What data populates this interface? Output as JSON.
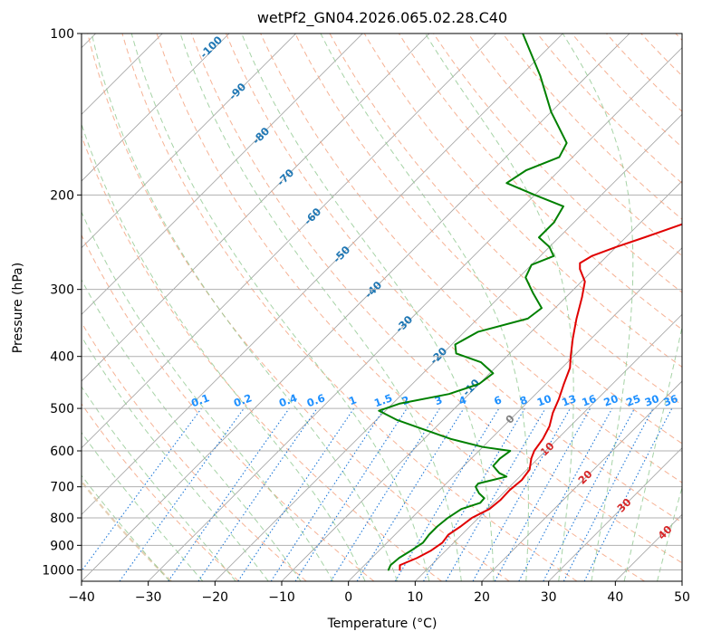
{
  "chart_data": {
    "type": "line",
    "title": "wetPf2_GN04.2026.065.02.28.C40",
    "xlabel": "Temperature (°C)",
    "ylabel": "Pressure (hPa)",
    "xlim": [
      -40,
      50
    ],
    "ylim": [
      1050,
      100
    ],
    "x_ticks": [
      "−40",
      "−30",
      "−20",
      "−10",
      "0",
      "10",
      "20",
      "30",
      "40",
      "50"
    ],
    "y_ticks": [
      {
        "p": 100,
        "label": "100"
      },
      {
        "p": 200,
        "label": "200"
      },
      {
        "p": 300,
        "label": "300"
      },
      {
        "p": 400,
        "label": "400"
      },
      {
        "p": 500,
        "label": "500"
      },
      {
        "p": 600,
        "label": "600"
      },
      {
        "p": 700,
        "label": "700"
      },
      {
        "p": 800,
        "label": "800"
      },
      {
        "p": 900,
        "label": "900"
      },
      {
        "p": 1000,
        "label": "1000"
      }
    ],
    "series": [
      {
        "name": "temperature",
        "color": "#e00000",
        "points": [
          [
            1000,
            6.0
          ],
          [
            980,
            5.3
          ],
          [
            950,
            6.8
          ],
          [
            920,
            7.8
          ],
          [
            890,
            8.3
          ],
          [
            860,
            8.0
          ],
          [
            830,
            8.6
          ],
          [
            800,
            9.0
          ],
          [
            770,
            10.3
          ],
          [
            740,
            10.6
          ],
          [
            710,
            10.5
          ],
          [
            680,
            10.8
          ],
          [
            650,
            10.4
          ],
          [
            620,
            9.0
          ],
          [
            600,
            8.3
          ],
          [
            570,
            7.8
          ],
          [
            540,
            6.9
          ],
          [
            510,
            5.4
          ],
          [
            480,
            4.2
          ],
          [
            450,
            2.7
          ],
          [
            420,
            1.2
          ],
          [
            400,
            -0.4
          ],
          [
            370,
            -2.8
          ],
          [
            340,
            -5.2
          ],
          [
            310,
            -7.6
          ],
          [
            290,
            -9.5
          ],
          [
            275,
            -12.1
          ],
          [
            268,
            -13.0
          ],
          [
            260,
            -12.3
          ],
          [
            250,
            -10.0
          ],
          [
            240,
            -7.2
          ],
          [
            225,
            -3.0
          ],
          [
            210,
            0.6
          ],
          [
            200,
            3.6
          ],
          [
            190,
            5.0
          ],
          [
            180,
            5.6
          ],
          [
            165,
            5.5
          ],
          [
            150,
            5.0
          ],
          [
            135,
            4.3
          ],
          [
            120,
            5.0
          ],
          [
            110,
            5.8
          ],
          [
            100,
            6.2
          ]
        ]
      },
      {
        "name": "dewpoint",
        "color": "#008000",
        "points": [
          [
            1000,
            4.3
          ],
          [
            980,
            3.9
          ],
          [
            950,
            4.1
          ],
          [
            920,
            4.8
          ],
          [
            890,
            5.4
          ],
          [
            860,
            5.1
          ],
          [
            830,
            5.1
          ],
          [
            800,
            5.4
          ],
          [
            770,
            6.1
          ],
          [
            750,
            8.0
          ],
          [
            735,
            7.9
          ],
          [
            720,
            6.4
          ],
          [
            700,
            4.9
          ],
          [
            690,
            4.8
          ],
          [
            680,
            6.4
          ],
          [
            670,
            8.0
          ],
          [
            660,
            6.4
          ],
          [
            640,
            4.4
          ],
          [
            620,
            4.3
          ],
          [
            600,
            4.7
          ],
          [
            590,
            0.0
          ],
          [
            570,
            -6.0
          ],
          [
            545,
            -12.0
          ],
          [
            525,
            -17.0
          ],
          [
            505,
            -21.0
          ],
          [
            490,
            -19.0
          ],
          [
            470,
            -13.0
          ],
          [
            450,
            -10.0
          ],
          [
            430,
            -9.5
          ],
          [
            410,
            -13.0
          ],
          [
            395,
            -18.0
          ],
          [
            380,
            -19.5
          ],
          [
            360,
            -18.0
          ],
          [
            340,
            -12.5
          ],
          [
            325,
            -12.0
          ],
          [
            305,
            -15.5
          ],
          [
            285,
            -19.0
          ],
          [
            270,
            -20.0
          ],
          [
            260,
            -18.0
          ],
          [
            250,
            -20.0
          ],
          [
            240,
            -23.0
          ],
          [
            225,
            -23.0
          ],
          [
            210,
            -24.0
          ],
          [
            200,
            -30.0
          ],
          [
            190,
            -36.0
          ],
          [
            180,
            -35.0
          ],
          [
            170,
            -32.0
          ],
          [
            160,
            -33.0
          ],
          [
            140,
            -40.0
          ],
          [
            120,
            -47.0
          ],
          [
            100,
            -56.0
          ]
        ]
      }
    ],
    "dry_adiabat_labels": [
      "-100",
      "-90",
      "-80",
      "-70",
      "-60",
      "-50",
      "-40",
      "-30",
      "-20",
      "-10",
      "0",
      "10",
      "20",
      "30",
      "40"
    ],
    "mixing_ratio_labels": [
      "0.1",
      "0.2",
      "0.4",
      "0.6",
      "1",
      "1.5",
      "2",
      "3",
      "4",
      "6",
      "8",
      "10",
      "13",
      "16",
      "20",
      "25",
      "30",
      "36"
    ],
    "colors": {
      "temperature": "#e00000",
      "dewpoint": "#008000",
      "isotherm": "#a0a0a0",
      "dry_adiabat": "#f4a582",
      "moist_adiabat": "#90c890",
      "mixing_ratio": "#1e78d8",
      "dry_label": "#1f77b4",
      "moist_label": "#d62728",
      "mixing_label": "#1e90ff",
      "zero_label": "#808080"
    }
  }
}
